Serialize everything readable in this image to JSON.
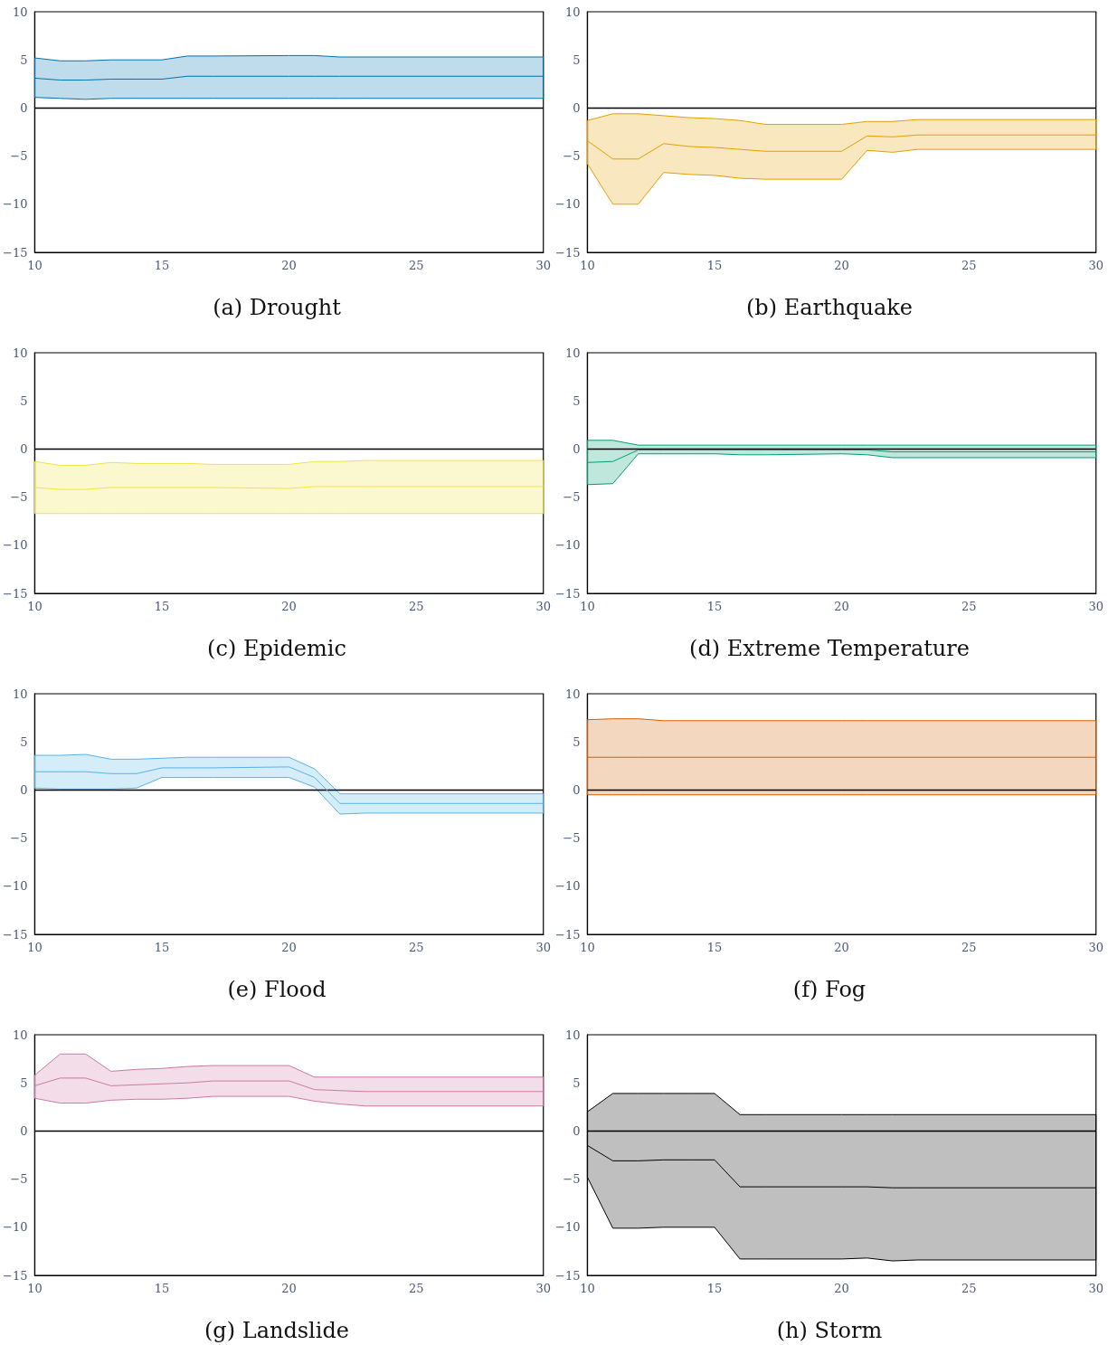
{
  "chart_data": [
    {
      "type": "line",
      "title": "(a) Drought",
      "x": [
        10,
        11,
        12,
        13,
        14,
        15,
        16,
        17,
        20,
        21,
        22,
        23,
        30
      ],
      "xlim": [
        10,
        30
      ],
      "xticks": [
        10,
        15,
        20,
        25,
        30
      ],
      "ylim": [
        -15,
        10
      ],
      "yticks": [
        {
          "value": -15,
          "label": "−15"
        },
        {
          "value": -10,
          "label": "−10"
        },
        {
          "value": -5,
          "label": "−5"
        },
        0,
        5,
        10
      ],
      "ref_lines": [
        {
          "axis": "y",
          "value": 0,
          "color": "#000000"
        }
      ],
      "grid": false,
      "marker": "none",
      "line_style": "solid",
      "series": [
        {
          "color": "#0072b2",
          "values": [
            3.1,
            2.9,
            2.9,
            3.0,
            3.0,
            3.0,
            3.3,
            3.3,
            3.3,
            3.3,
            3.3,
            3.3,
            3.3
          ],
          "lower": [
            1.1,
            1.0,
            0.9,
            1.0,
            1.0,
            1.0,
            1.0,
            1.0,
            1.0,
            1.0,
            1.0,
            1.0,
            1.0
          ],
          "upper": [
            5.2,
            4.9,
            4.9,
            5.0,
            5.0,
            5.0,
            5.4,
            5.4,
            5.45,
            5.45,
            5.3,
            5.3,
            5.3
          ]
        }
      ]
    },
    {
      "type": "line",
      "title": "(b) Earthquake",
      "x": [
        10,
        11,
        12,
        13,
        14,
        15,
        16,
        17,
        20,
        21,
        22,
        23,
        30
      ],
      "xlim": [
        10,
        30
      ],
      "xticks": [
        10,
        15,
        20,
        25,
        30
      ],
      "ylim": [
        -15,
        10
      ],
      "yticks": [
        {
          "value": -15,
          "label": "−15"
        },
        {
          "value": -10,
          "label": "−10"
        },
        {
          "value": -5,
          "label": "−5"
        },
        0,
        5,
        10
      ],
      "ref_lines": [
        {
          "axis": "y",
          "value": 0,
          "color": "#000000"
        }
      ],
      "grid": false,
      "marker": "none",
      "line_style": "solid",
      "series": [
        {
          "color": "#e69f00",
          "values": [
            -3.4,
            -5.3,
            -5.3,
            -3.7,
            -4.0,
            -4.1,
            -4.3,
            -4.5,
            -4.5,
            -2.9,
            -3.0,
            -2.8,
            -2.8
          ],
          "lower": [
            -5.8,
            -10.0,
            -10.0,
            -6.7,
            -6.9,
            -7.0,
            -7.3,
            -7.4,
            -7.4,
            -4.4,
            -4.6,
            -4.3,
            -4.3
          ],
          "upper": [
            -1.3,
            -0.6,
            -0.6,
            -0.8,
            -1.0,
            -1.1,
            -1.3,
            -1.7,
            -1.7,
            -1.4,
            -1.4,
            -1.2,
            -1.2
          ]
        }
      ]
    },
    {
      "type": "line",
      "title": "(c) Epidemic",
      "x": [
        10,
        11,
        12,
        13,
        14,
        15,
        16,
        17,
        20,
        21,
        22,
        23,
        30
      ],
      "xlim": [
        10,
        30
      ],
      "xticks": [
        10,
        15,
        20,
        25,
        30
      ],
      "ylim": [
        -15,
        10
      ],
      "yticks": [
        {
          "value": -15,
          "label": "−15"
        },
        {
          "value": -10,
          "label": "−10"
        },
        {
          "value": -5,
          "label": "−5"
        },
        0,
        5,
        10
      ],
      "ref_lines": [
        {
          "axis": "y",
          "value": 0,
          "color": "#000000"
        }
      ],
      "grid": false,
      "marker": "none",
      "line_style": "solid",
      "series": [
        {
          "color": "#f0e442",
          "values": [
            -4.0,
            -4.2,
            -4.2,
            -4.0,
            -4.0,
            -4.0,
            -4.0,
            -4.0,
            -4.1,
            -3.9,
            -3.9,
            -3.9,
            -3.9
          ],
          "lower": [
            -6.7,
            -6.7,
            -6.7,
            -6.7,
            -6.7,
            -6.7,
            -6.7,
            -6.7,
            -6.7,
            -6.7,
            -6.7,
            -6.7,
            -6.7
          ],
          "upper": [
            -1.3,
            -1.7,
            -1.7,
            -1.4,
            -1.5,
            -1.5,
            -1.5,
            -1.6,
            -1.6,
            -1.3,
            -1.3,
            -1.2,
            -1.2
          ]
        }
      ]
    },
    {
      "type": "line",
      "title": "(d) Extreme Temperature",
      "x": [
        10,
        11,
        12,
        13,
        14,
        15,
        16,
        17,
        20,
        21,
        22,
        23,
        30
      ],
      "xlim": [
        10,
        30
      ],
      "xticks": [
        10,
        15,
        20,
        25,
        30
      ],
      "ylim": [
        -15,
        10
      ],
      "yticks": [
        {
          "value": -15,
          "label": "−15"
        },
        {
          "value": -10,
          "label": "−10"
        },
        {
          "value": -5,
          "label": "−5"
        },
        0,
        5,
        10
      ],
      "ref_lines": [
        {
          "axis": "y",
          "value": 0,
          "color": "#000000"
        }
      ],
      "grid": false,
      "marker": "none",
      "line_style": "solid",
      "series": [
        {
          "color": "#009e73",
          "values": [
            -1.4,
            -1.3,
            -0.1,
            -0.1,
            -0.1,
            -0.1,
            -0.1,
            -0.1,
            -0.1,
            -0.1,
            -0.3,
            -0.3,
            -0.3
          ],
          "lower": [
            -3.7,
            -3.6,
            -0.5,
            -0.5,
            -0.5,
            -0.5,
            -0.6,
            -0.6,
            -0.5,
            -0.6,
            -0.9,
            -0.9,
            -0.9
          ],
          "upper": [
            0.9,
            0.9,
            0.4,
            0.4,
            0.4,
            0.4,
            0.4,
            0.4,
            0.4,
            0.4,
            0.4,
            0.4,
            0.4
          ]
        }
      ]
    },
    {
      "type": "line",
      "title": "(e) Flood",
      "x": [
        10,
        11,
        12,
        13,
        14,
        15,
        16,
        17,
        20,
        21,
        22,
        23,
        30
      ],
      "xlim": [
        10,
        30
      ],
      "xticks": [
        10,
        15,
        20,
        25,
        30
      ],
      "ylim": [
        -15,
        10
      ],
      "yticks": [
        {
          "value": -15,
          "label": "−15"
        },
        {
          "value": -10,
          "label": "−10"
        },
        {
          "value": -5,
          "label": "−5"
        },
        0,
        5,
        10
      ],
      "ref_lines": [
        {
          "axis": "y",
          "value": 0,
          "color": "#000000"
        }
      ],
      "grid": false,
      "marker": "none",
      "line_style": "solid",
      "series": [
        {
          "color": "#56b4e9",
          "values": [
            1.9,
            1.9,
            1.9,
            1.7,
            1.7,
            2.3,
            2.3,
            2.3,
            2.4,
            1.3,
            -1.4,
            -1.4,
            -1.4
          ],
          "lower": [
            0.2,
            0.1,
            0.1,
            0.1,
            0.2,
            1.3,
            1.3,
            1.3,
            1.3,
            0.3,
            -2.5,
            -2.4,
            -2.4
          ],
          "upper": [
            3.6,
            3.6,
            3.7,
            3.2,
            3.2,
            3.3,
            3.4,
            3.4,
            3.4,
            2.2,
            -0.4,
            -0.4,
            -0.4
          ]
        }
      ]
    },
    {
      "type": "line",
      "title": "(f) Fog",
      "x": [
        10,
        11,
        12,
        13,
        14,
        15,
        16,
        17,
        20,
        21,
        22,
        23,
        30
      ],
      "xlim": [
        10,
        30
      ],
      "xticks": [
        10,
        15,
        20,
        25,
        30
      ],
      "ylim": [
        -15,
        10
      ],
      "yticks": [
        {
          "value": -15,
          "label": "−15"
        },
        {
          "value": -10,
          "label": "−10"
        },
        {
          "value": -5,
          "label": "−5"
        },
        0,
        5,
        10
      ],
      "ref_lines": [
        {
          "axis": "y",
          "value": 0,
          "color": "#000000"
        }
      ],
      "grid": false,
      "marker": "none",
      "line_style": "solid",
      "series": [
        {
          "color": "#d55e00",
          "values": [
            3.4,
            3.4,
            3.4,
            3.4,
            3.4,
            3.4,
            3.4,
            3.4,
            3.4,
            3.4,
            3.4,
            3.4,
            3.4
          ],
          "lower": [
            -0.5,
            -0.5,
            -0.5,
            -0.5,
            -0.5,
            -0.5,
            -0.5,
            -0.5,
            -0.5,
            -0.5,
            -0.5,
            -0.5,
            -0.5
          ],
          "upper": [
            7.3,
            7.4,
            7.4,
            7.2,
            7.2,
            7.2,
            7.2,
            7.2,
            7.2,
            7.2,
            7.2,
            7.2,
            7.2
          ]
        }
      ]
    },
    {
      "type": "line",
      "title": "(g) Landslide",
      "x": [
        10,
        11,
        12,
        13,
        14,
        15,
        16,
        17,
        20,
        21,
        22,
        23,
        30
      ],
      "xlim": [
        10,
        30
      ],
      "xticks": [
        10,
        15,
        20,
        25,
        30
      ],
      "ylim": [
        -15,
        10
      ],
      "yticks": [
        {
          "value": -15,
          "label": "−15"
        },
        {
          "value": -10,
          "label": "−10"
        },
        {
          "value": -5,
          "label": "−5"
        },
        0,
        5,
        10
      ],
      "ref_lines": [
        {
          "axis": "y",
          "value": 0,
          "color": "#000000"
        }
      ],
      "grid": false,
      "marker": "none",
      "line_style": "solid",
      "series": [
        {
          "color": "#cc79a7",
          "values": [
            4.7,
            5.5,
            5.5,
            4.7,
            4.8,
            4.9,
            5.0,
            5.2,
            5.2,
            4.3,
            4.2,
            4.1,
            4.1
          ],
          "lower": [
            3.4,
            2.9,
            2.9,
            3.2,
            3.3,
            3.3,
            3.4,
            3.6,
            3.6,
            3.1,
            2.8,
            2.6,
            2.6
          ],
          "upper": [
            5.8,
            8.0,
            8.0,
            6.2,
            6.4,
            6.5,
            6.7,
            6.8,
            6.8,
            5.6,
            5.6,
            5.6,
            5.6
          ]
        }
      ]
    },
    {
      "type": "line",
      "title": "(h) Storm",
      "x": [
        10,
        11,
        12,
        13,
        14,
        15,
        16,
        17,
        20,
        21,
        22,
        23,
        30
      ],
      "xlim": [
        10,
        30
      ],
      "xticks": [
        10,
        15,
        20,
        25,
        30
      ],
      "ylim": [
        -15,
        10
      ],
      "yticks": [
        {
          "value": -15,
          "label": "−15"
        },
        {
          "value": -10,
          "label": "−10"
        },
        {
          "value": -5,
          "label": "−5"
        },
        0,
        5,
        10
      ],
      "ref_lines": [
        {
          "axis": "y",
          "value": 0,
          "color": "#000000"
        }
      ],
      "grid": false,
      "marker": "none",
      "line_style": "solid",
      "series": [
        {
          "color": "#000000",
          "values": [
            -1.5,
            -3.1,
            -3.1,
            -3.0,
            -3.0,
            -3.0,
            -5.8,
            -5.8,
            -5.8,
            -5.8,
            -5.9,
            -5.9,
            -5.9
          ],
          "lower": [
            -4.8,
            -10.1,
            -10.1,
            -10.0,
            -10.0,
            -10.0,
            -13.3,
            -13.3,
            -13.3,
            -13.2,
            -13.5,
            -13.4,
            -13.4
          ],
          "upper": [
            2.0,
            3.9,
            3.9,
            3.9,
            3.9,
            3.9,
            1.7,
            1.7,
            1.7,
            1.7,
            1.7,
            1.7,
            1.7
          ]
        }
      ]
    }
  ]
}
